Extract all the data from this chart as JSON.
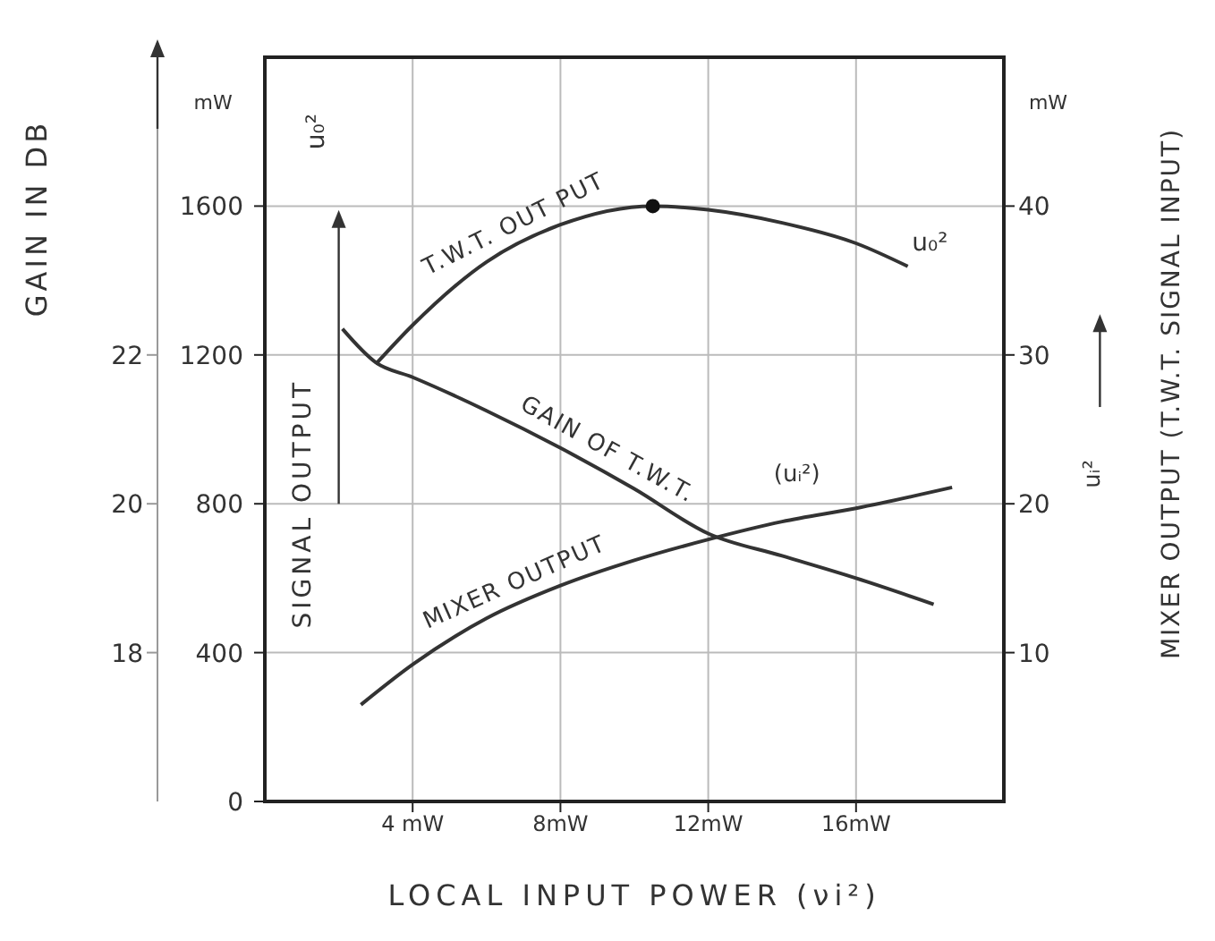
{
  "chart_data": {
    "type": "line",
    "xlabel": "LOCAL INPUT POWER (νi²)",
    "ylabel": "SIGNAL OUTPUT",
    "y2label": "MIXER OUTPUT (T.W.T. SIGNAL INPUT)",
    "y3label": "GAIN IN DB",
    "annotations": [
      "mW",
      "mW",
      "u₀²",
      "u₀²",
      "(uᵢ²)",
      "uᵢ²"
    ],
    "xlim": [
      0,
      20
    ],
    "xticks": [
      {
        "value": 4,
        "label": "4 mW"
      },
      {
        "value": 8,
        "label": "8mW"
      },
      {
        "value": 12,
        "label": "12mW"
      },
      {
        "value": 16,
        "label": "16mW"
      }
    ],
    "ylim": [
      0,
      2000
    ],
    "yticks": [
      0,
      400,
      800,
      1200,
      1600
    ],
    "y2lim": [
      0,
      50
    ],
    "y2ticks": [
      10,
      20,
      30,
      40
    ],
    "y3lim": [
      16,
      26
    ],
    "y3ticks": [
      18,
      20,
      22
    ],
    "grid": true,
    "series": [
      {
        "name": "T.W.T. OUT PUT",
        "color": "#333333",
        "x": [
          3.0,
          4,
          6,
          8,
          10.5,
          12,
          14,
          16,
          17.4
        ],
        "values": [
          1175,
          1280,
          1450,
          1550,
          1600,
          1590,
          1555,
          1500,
          1438
        ]
      },
      {
        "name": "GAIN OF T.W.T.",
        "color": "#333333",
        "axis": "y3",
        "x": [
          2.1,
          3.0,
          4,
          6,
          8,
          10,
          12,
          14,
          16,
          18.1
        ],
        "values": [
          22.35,
          21.9,
          21.7,
          21.25,
          20.75,
          20.2,
          19.6,
          19.3,
          19.0,
          18.65
        ]
      },
      {
        "name": "MIXER OUTPUT",
        "color": "#333333",
        "axis": "y2",
        "x": [
          2.6,
          4,
          6,
          8,
          10,
          12,
          14,
          16,
          18.6
        ],
        "values": [
          6.5,
          9.2,
          12.3,
          14.5,
          16.2,
          17.6,
          18.8,
          19.7,
          21.1
        ]
      },
      {
        "type": "scatter",
        "color": "#111111",
        "x": [
          10.5
        ],
        "values": [
          1600
        ]
      }
    ]
  }
}
